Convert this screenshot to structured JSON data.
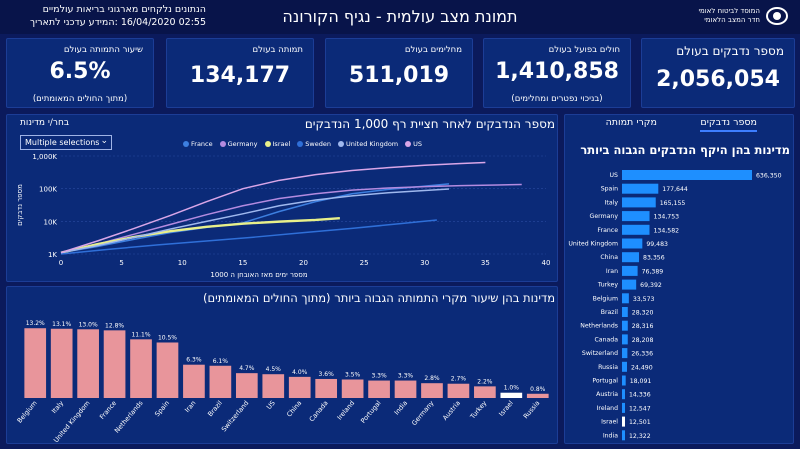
{
  "header": {
    "note_line1": "הנתונים נלקחים מארגוני בריאות עולמיים",
    "note_line2": "02:55 16/04/2020 :המידע עדכני לתאריך",
    "title": "תמונת מצב עולמית - נגיף הקורונה",
    "logo_line1": "המוסד לביטוח לאומי",
    "logo_line2": "חדר המצב הלאומי"
  },
  "kpis": [
    {
      "label": "שיעור התמותה בעולם",
      "value": "6.5%",
      "sub": "(מתוך החולים המאומתים)"
    },
    {
      "label": "תמותה בעולם",
      "value": "134,177",
      "sub": ""
    },
    {
      "label": "מחלימים בעולם",
      "value": "511,019",
      "sub": ""
    },
    {
      "label": "חולים בפועל בעולם",
      "value": "1,410,858",
      "sub": "(בניכוי נפטרים ומחלימים)"
    },
    {
      "label": "מספר נדבקים בעולם",
      "value": "2,056,054",
      "sub": ""
    }
  ],
  "line_panel": {
    "filter_label": "בחר/י מדינות",
    "dropdown_value": "Multiple selections",
    "title": "מספר הנדבקים לאחר חציית רף 1,000 הנדבקים",
    "ylabel": "מספר נדבקים",
    "xlabel": "מספר ימים מאז האובחן ה 1000"
  },
  "bar_panel": {
    "title": "מדינות בהן שיעור מקרי התמותה הגבוה ביותר (מתוך החולים המאומתים)"
  },
  "right_panel": {
    "tab_active": "מספר נדבקים",
    "tab_other": "מקרי תמותה",
    "title": "מדינות בהן היקף הנדבקים הגבוה ביותר"
  },
  "colors": {
    "France": "#3d7fe0",
    "Germany": "#b48be0",
    "Israel": "#e8f08a",
    "Sweden": "#2f6fd8",
    "United Kingdom": "#9fb8ee",
    "US": "#d9a6e8",
    "death_bar": "#e8959b",
    "case_bar": "#1e8fff"
  },
  "chart_data": [
    {
      "type": "line",
      "title": "מספר הנדבקים לאחר חציית רף 1,000 הנדבקים",
      "xlabel": "מספר ימים מאז האובחן ה 1000",
      "ylabel": "מספר נדבקים",
      "y_scale": "log",
      "xlim": [
        0,
        40
      ],
      "ylim": [
        1000,
        1000000
      ],
      "x_ticks": [
        "0",
        "5",
        "10",
        "15",
        "20",
        "25",
        "30",
        "35",
        "40"
      ],
      "y_ticks": [
        "1K",
        "10K",
        "100K",
        "1,000K"
      ],
      "legend_position": "top",
      "series": [
        {
          "name": "France",
          "x": [
            0,
            3,
            6,
            9,
            12,
            15,
            18,
            21,
            24,
            27,
            30,
            32
          ],
          "y": [
            1100,
            1700,
            2800,
            4500,
            6500,
            9000,
            20000,
            40000,
            70000,
            95000,
            120000,
            140000
          ]
        },
        {
          "name": "Germany",
          "x": [
            0,
            3,
            6,
            9,
            12,
            15,
            18,
            21,
            24,
            27,
            30,
            33,
            36,
            38
          ],
          "y": [
            1100,
            2000,
            4000,
            8000,
            16000,
            30000,
            50000,
            70000,
            90000,
            105000,
            115000,
            124000,
            130000,
            134000
          ]
        },
        {
          "name": "Israel",
          "x": [
            0,
            3,
            6,
            9,
            12,
            15,
            18,
            21,
            23
          ],
          "y": [
            1100,
            2000,
            3300,
            5000,
            6800,
            8500,
            9800,
            11000,
            12500
          ]
        },
        {
          "name": "Sweden",
          "x": [
            0,
            4,
            8,
            12,
            16,
            20,
            24,
            28,
            31
          ],
          "y": [
            1000,
            1400,
            1900,
            2500,
            3300,
            4500,
            6100,
            8500,
            11000
          ]
        },
        {
          "name": "United Kingdom",
          "x": [
            0,
            3,
            6,
            9,
            12,
            15,
            18,
            21,
            24,
            27,
            30,
            32
          ],
          "y": [
            1100,
            1800,
            3200,
            5800,
            10000,
            17000,
            30000,
            45000,
            60000,
            75000,
            88000,
            98000
          ]
        },
        {
          "name": "US",
          "x": [
            0,
            3,
            6,
            9,
            12,
            15,
            18,
            21,
            24,
            27,
            30,
            33,
            35
          ],
          "y": [
            1100,
            2500,
            6000,
            15000,
            40000,
            100000,
            180000,
            270000,
            360000,
            440000,
            520000,
            590000,
            630000
          ]
        }
      ]
    },
    {
      "type": "bar",
      "title": "מדינות בהן שיעור מקרי התמותה הגבוה ביותר (מתוך החולים המאומתים)",
      "categories": [
        "Belgium",
        "Italy",
        "United Kingdom",
        "France",
        "Netherlands",
        "Spain",
        "Iran",
        "Brazil",
        "Switzerland",
        "US",
        "China",
        "Canada",
        "Ireland",
        "Portugal",
        "India",
        "Germany",
        "Austria",
        "Turkey",
        "Israel",
        "Russia"
      ],
      "values": [
        13.2,
        13.1,
        13.0,
        12.8,
        11.1,
        10.5,
        6.3,
        6.1,
        4.7,
        4.5,
        4.0,
        3.6,
        3.5,
        3.3,
        3.3,
        2.8,
        2.7,
        2.2,
        1.0,
        0.8
      ],
      "labels": [
        "13.2%",
        "13.1%",
        "13.0%",
        "12.8%",
        "11.1%",
        "10.5%",
        "6.3%",
        "6.1%",
        "4.7%",
        "4.5%",
        "4.0%",
        "3.6%",
        "3.5%",
        "3.3%",
        "3.3%",
        "2.8%",
        "2.7%",
        "2.2%",
        "1.0%",
        "0.8%"
      ],
      "highlight": "Israel"
    },
    {
      "type": "bar",
      "orientation": "horizontal",
      "title": "מדינות בהן היקף הנדבקים הגבוה ביותר",
      "categories": [
        "US",
        "Spain",
        "Italy",
        "Germany",
        "France",
        "United Kingdom",
        "China",
        "Iran",
        "Turkey",
        "Belgium",
        "Brazil",
        "Netherlands",
        "Canada",
        "Switzerland",
        "Russia",
        "Portugal",
        "Austria",
        "Ireland",
        "Israel",
        "India"
      ],
      "values": [
        636350,
        177644,
        165155,
        134753,
        134582,
        99483,
        83356,
        76389,
        69392,
        33573,
        28320,
        28316,
        28208,
        26336,
        24490,
        18091,
        14336,
        12547,
        12501,
        12322
      ],
      "labels": [
        "636,350",
        "177,644",
        "165,155",
        "134,753",
        "134,582",
        "99,483",
        "83,356",
        "76,389",
        "69,392",
        "33,573",
        "28,320",
        "28,316",
        "28,208",
        "26,336",
        "24,490",
        "18,091",
        "14,336",
        "12,547",
        "12,501",
        "12,322"
      ],
      "highlight": "Israel"
    }
  ]
}
